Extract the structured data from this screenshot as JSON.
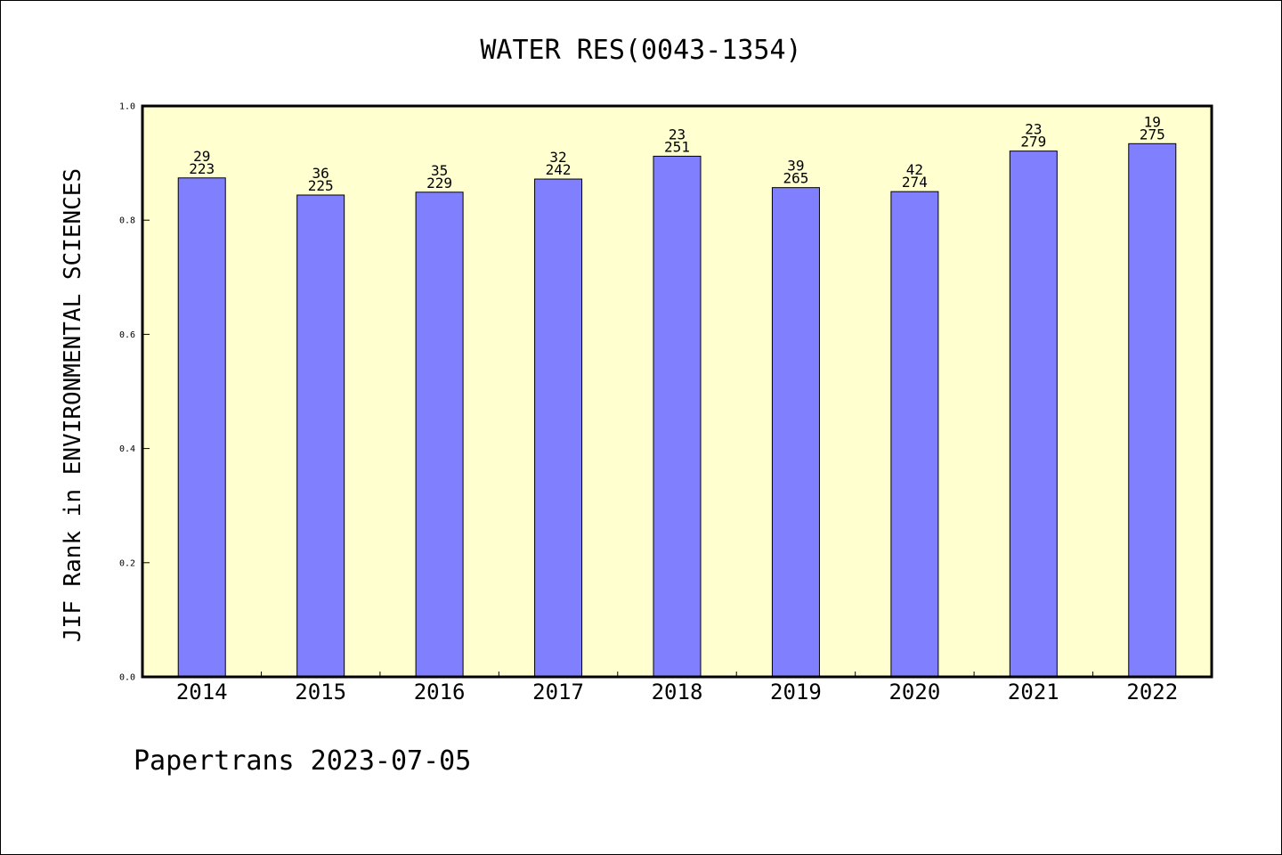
{
  "chart_data": {
    "type": "bar",
    "title": "WATER RES(0043-1354)",
    "xlabel": "",
    "ylabel": "JIF Rank in ENVIRONMENTAL SCIENCES",
    "ylim": [
      0,
      1.0
    ],
    "yticks": [
      "0.0",
      "0.2",
      "0.4",
      "0.6",
      "0.8",
      "1.0"
    ],
    "categories": [
      "2014",
      "2015",
      "2016",
      "2017",
      "2018",
      "2019",
      "2020",
      "2021",
      "2022"
    ],
    "values": [
      0.874,
      0.844,
      0.849,
      0.872,
      0.912,
      0.857,
      0.85,
      0.921,
      0.934
    ],
    "rank": [
      "29",
      "36",
      "35",
      "32",
      "23",
      "39",
      "42",
      "23",
      "19"
    ],
    "total": [
      "223",
      "225",
      "229",
      "242",
      "251",
      "265",
      "274",
      "279",
      "275"
    ],
    "grid": false,
    "legend": "none",
    "colors": {
      "bar": "#8080ff",
      "plot_bg": "#ffffd0",
      "bar_edge": "#000000"
    }
  },
  "footer": "Papertrans 2023-07-05"
}
